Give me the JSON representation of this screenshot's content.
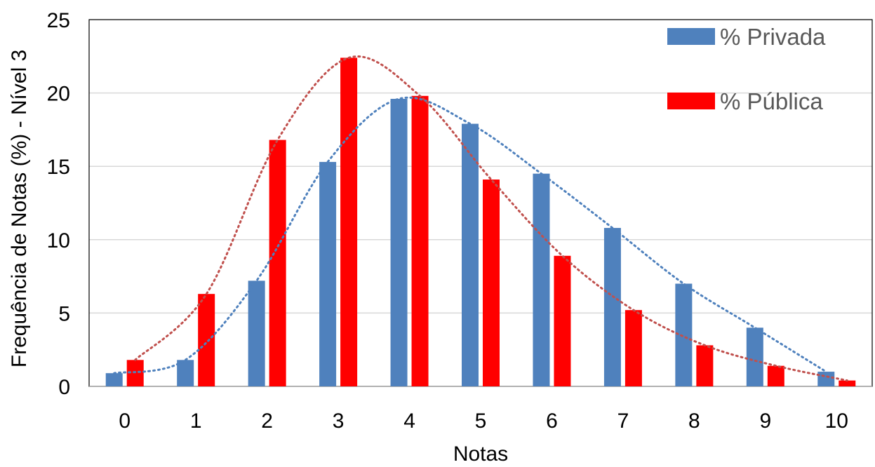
{
  "chart_data": {
    "type": "bar",
    "title": "",
    "xlabel": "Notas",
    "ylabel": "Frequência de Notas (%) - Nível 3",
    "categories": [
      "0",
      "1",
      "2",
      "3",
      "4",
      "5",
      "6",
      "7",
      "8",
      "9",
      "10"
    ],
    "ylim": [
      0,
      25
    ],
    "yticks": [
      0,
      5,
      10,
      15,
      20,
      25
    ],
    "grid": true,
    "legend_position": "top-right",
    "series": [
      {
        "name": "% Privada",
        "color": "#4F81BD",
        "values": [
          0.9,
          1.8,
          7.2,
          15.3,
          19.6,
          17.9,
          14.5,
          10.8,
          7.0,
          4.0,
          1.0
        ]
      },
      {
        "name": "% Pública",
        "color": "#FF0000",
        "values": [
          1.8,
          6.3,
          16.8,
          22.4,
          19.8,
          14.1,
          8.9,
          5.2,
          2.8,
          1.4,
          0.4
        ]
      }
    ],
    "trendlines": [
      {
        "series": "% Privada",
        "style": "dotted",
        "color": "#4F81BD"
      },
      {
        "series": "% Pública",
        "style": "dotted",
        "color": "#C0504D"
      }
    ]
  }
}
